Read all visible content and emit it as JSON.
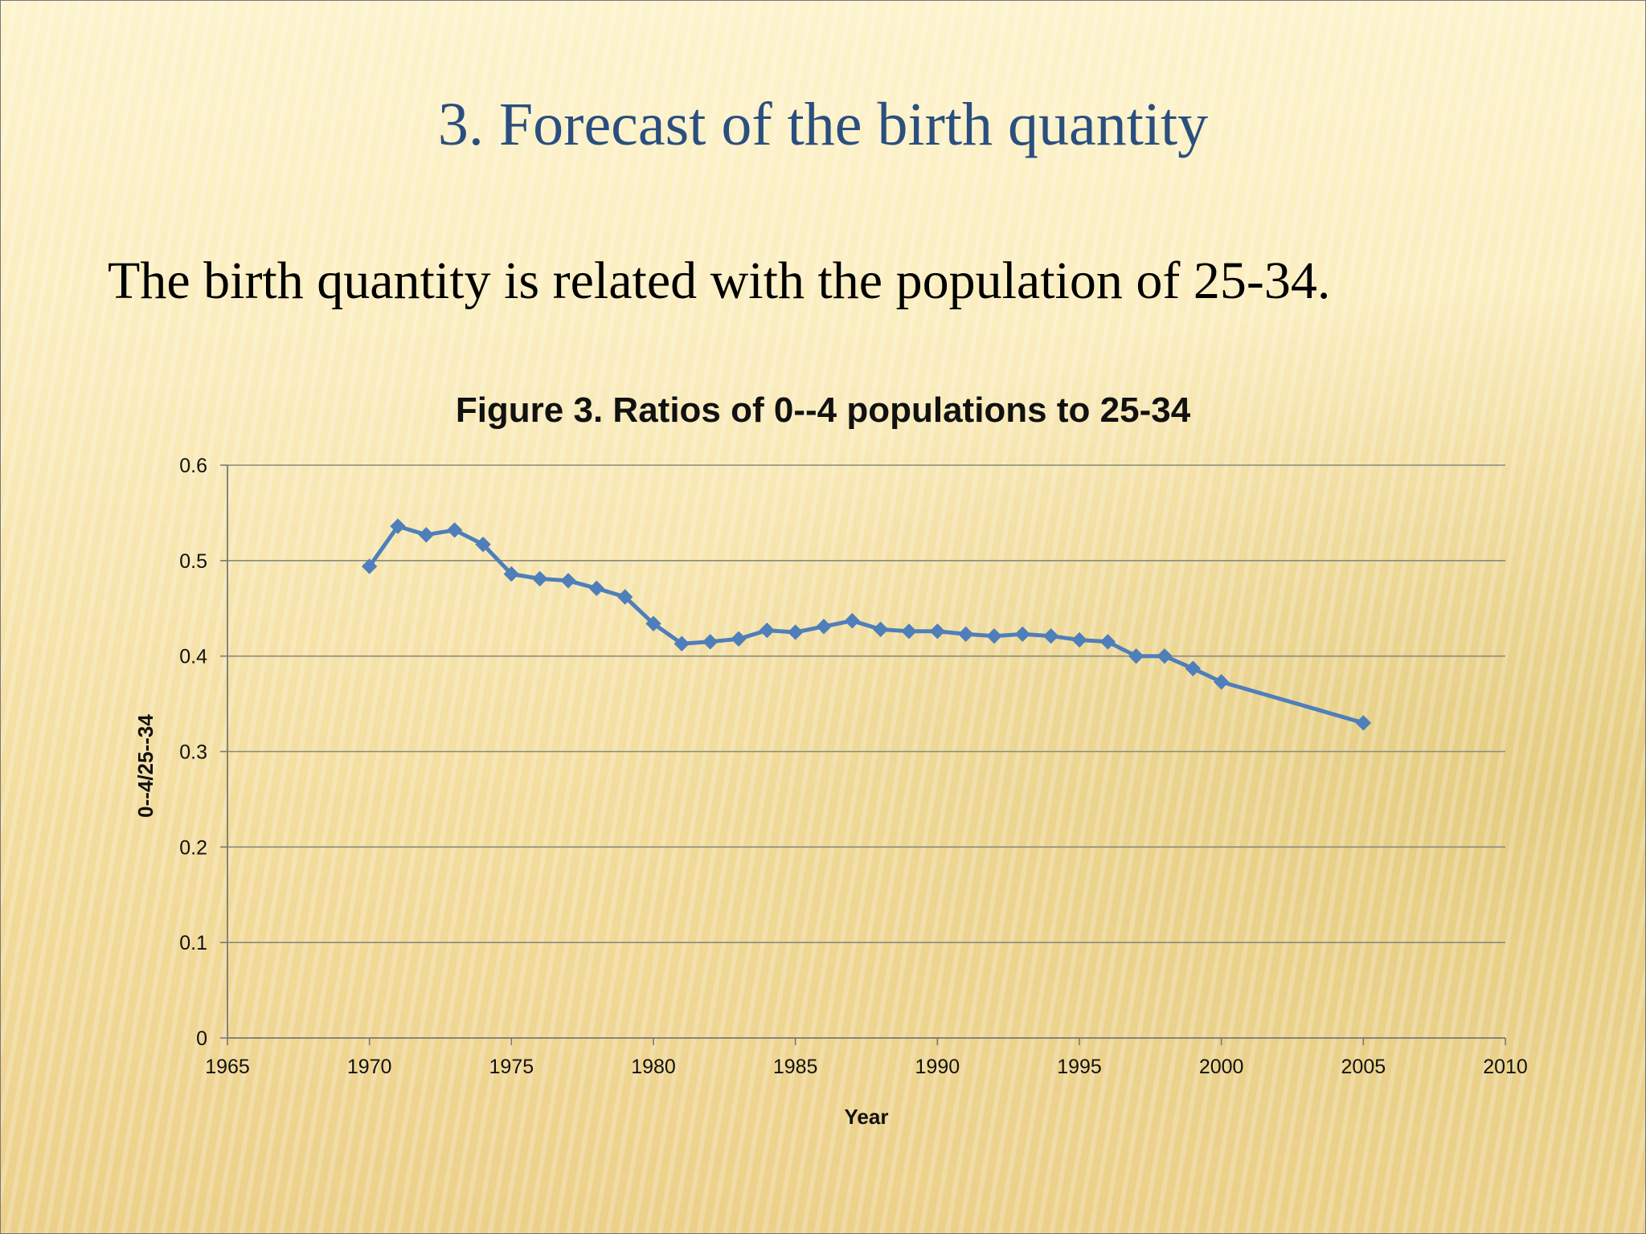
{
  "slide": {
    "title": "3. Forecast of the birth quantity",
    "body": "The birth quantity is related with the population of 25-34."
  },
  "chart_data": {
    "type": "line",
    "title": "Figure 3. Ratios of 0--4 populations to 25-34",
    "xlabel": "Year",
    "ylabel": "0--4/25--34",
    "xlim": [
      1965,
      2010
    ],
    "ylim": [
      0,
      0.6
    ],
    "x_ticks": [
      "1965",
      "1970",
      "1975",
      "1980",
      "1985",
      "1990",
      "1995",
      "2000",
      "2005",
      "2010"
    ],
    "y_ticks": [
      "0",
      "0.1",
      "0.2",
      "0.3",
      "0.4",
      "0.5",
      "0.6"
    ],
    "grid": "horizontal",
    "marker": "diamond",
    "color": "#4f7fba",
    "series": [
      {
        "x": [
          1970,
          1971,
          1972,
          1973,
          1974,
          1975,
          1976,
          1977,
          1978,
          1979,
          1980,
          1981,
          1982,
          1983,
          1984,
          1985,
          1986,
          1987,
          1988,
          1989,
          1990,
          1991,
          1992,
          1993,
          1994,
          1995,
          1996,
          1997,
          1998,
          1999,
          2000,
          2005
        ],
        "y": [
          0.494,
          0.536,
          0.527,
          0.532,
          0.517,
          0.486,
          0.481,
          0.479,
          0.471,
          0.462,
          0.434,
          0.413,
          0.415,
          0.418,
          0.427,
          0.425,
          0.431,
          0.437,
          0.428,
          0.426,
          0.426,
          0.423,
          0.421,
          0.423,
          0.421,
          0.417,
          0.415,
          0.4,
          0.4,
          0.387,
          0.373,
          0.33
        ]
      }
    ]
  }
}
